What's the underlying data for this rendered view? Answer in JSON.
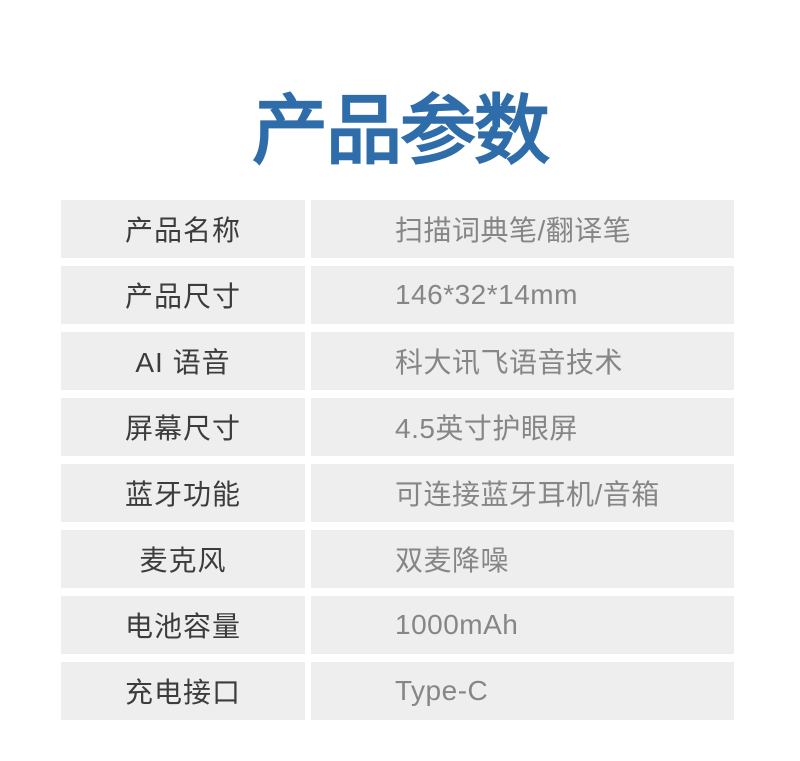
{
  "header": {
    "title": "产品参数",
    "title_color": "#2e6da9"
  },
  "table": {
    "row_background": "#eeeeee",
    "label_color": "#3c3c3c",
    "value_color": "#868686",
    "rows": [
      {
        "label": "产品名称",
        "value": "扫描词典笔/翻译笔"
      },
      {
        "label": "产品尺寸",
        "value": "146*32*14mm"
      },
      {
        "label": "AI 语音",
        "value": "科大讯飞语音技术"
      },
      {
        "label": "屏幕尺寸",
        "value": "4.5英寸护眼屏"
      },
      {
        "label": "蓝牙功能",
        "value": "可连接蓝牙耳机/音箱"
      },
      {
        "label": "麦克风",
        "value": "双麦降噪"
      },
      {
        "label": "电池容量",
        "value": "1000mAh"
      },
      {
        "label": "充电接口",
        "value": "Type-C"
      }
    ]
  }
}
